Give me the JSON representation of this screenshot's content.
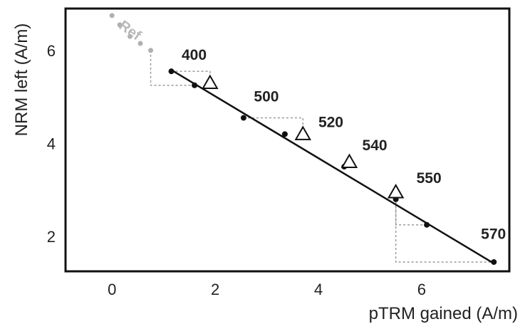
{
  "chart_data": {
    "type": "scatter",
    "xlabel": "pTRM gained (A/m)",
    "ylabel": "NRM left (A/m)",
    "xlim": [
      -0.9,
      7.7
    ],
    "ylim": [
      1.25,
      6.9
    ],
    "xticks": [
      0,
      2,
      4,
      6
    ],
    "yticks": [
      2,
      4,
      6
    ],
    "grid": false,
    "colors": {
      "main": "#111111",
      "low_temp": "#b0b0b0",
      "check_lines": "#9a9a9a"
    },
    "series": [
      {
        "values": [
          {
            "x": 1.15,
            "y": 5.55
          },
          {
            "x": 1.6,
            "y": 5.25
          },
          {
            "x": 2.55,
            "y": 4.55
          },
          {
            "x": 3.35,
            "y": 4.2
          },
          {
            "x": 4.5,
            "y": 3.5
          },
          {
            "x": 5.5,
            "y": 2.8
          },
          {
            "x": 6.1,
            "y": 2.25
          },
          {
            "x": 7.4,
            "y": 1.45
          }
        ]
      },
      {
        "values": [
          {
            "x": 0.0,
            "y": 6.75
          },
          {
            "x": 0.15,
            "y": 6.55
          },
          {
            "x": 0.35,
            "y": 6.3
          },
          {
            "x": 0.55,
            "y": 6.15
          },
          {
            "x": 0.75,
            "y": 6.0
          }
        ]
      },
      {
        "values": [
          {
            "x": 1.9,
            "y": 5.3
          },
          {
            "x": 3.7,
            "y": 4.2
          },
          {
            "x": 4.6,
            "y": 3.6
          },
          {
            "x": 5.5,
            "y": 2.95
          }
        ]
      }
    ],
    "fit_line": {
      "x1": 1.15,
      "y1": 5.58,
      "x2": 7.4,
      "y2": 1.42
    },
    "annotations": [
      {
        "text": "400",
        "x": 1.35,
        "y": 5.8
      },
      {
        "text": "500",
        "x": 2.75,
        "y": 4.9
      },
      {
        "text": "520",
        "x": 4.0,
        "y": 4.35
      },
      {
        "text": "540",
        "x": 4.85,
        "y": 3.85
      },
      {
        "text": "550",
        "x": 5.9,
        "y": 3.15
      },
      {
        "text": "570",
        "x": 7.15,
        "y": 1.95
      }
    ],
    "gray_annotation": {
      "text": "Ref",
      "x": 0.3,
      "y": 6.35
    }
  }
}
